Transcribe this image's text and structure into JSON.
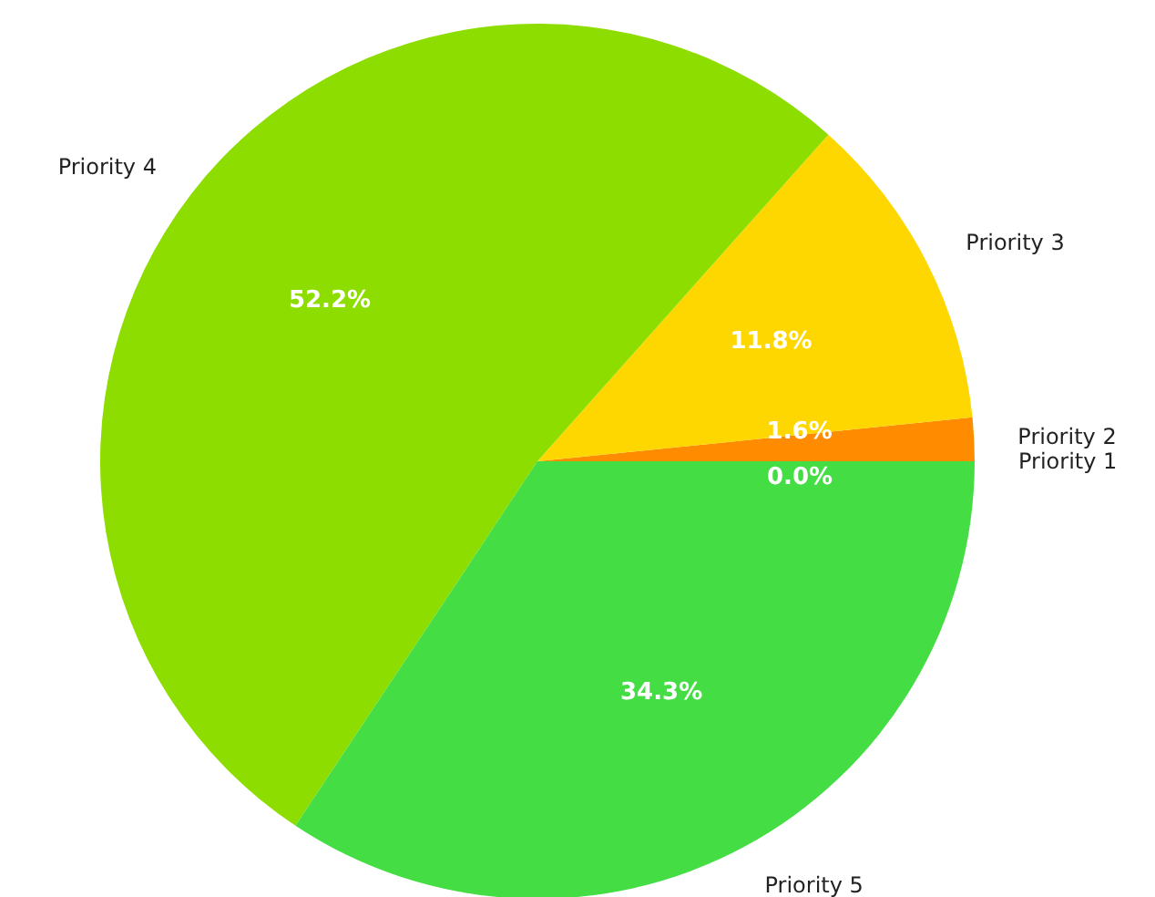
{
  "chart_data": {
    "type": "pie",
    "categories": [
      "Priority 1",
      "Priority 2",
      "Priority 3",
      "Priority 4",
      "Priority 5"
    ],
    "values": [
      0.0,
      1.6,
      11.8,
      52.2,
      34.3
    ],
    "colors": [
      "#ff2200",
      "#ff8c00",
      "#ffd700",
      "#8edd00",
      "#44dd44"
    ],
    "value_labels": [
      "0.0%",
      "1.6%",
      "11.8%",
      "52.2%",
      "34.3%"
    ],
    "legend": false
  }
}
